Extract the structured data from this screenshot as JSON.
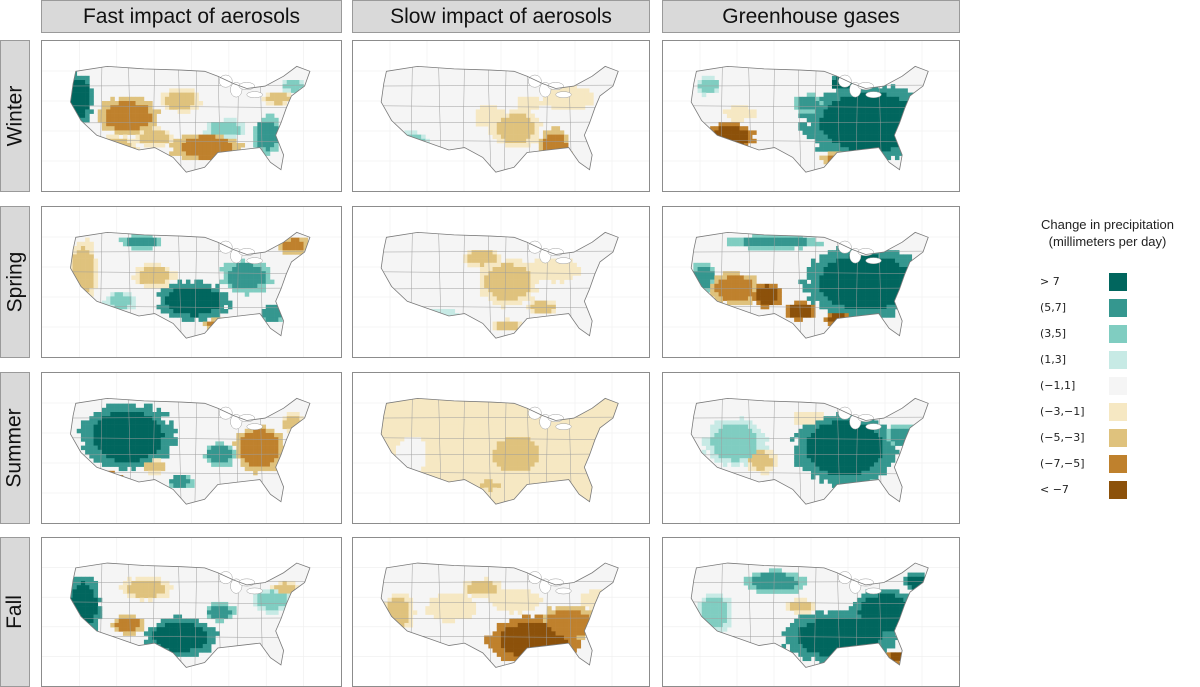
{
  "columns": [
    "Fast impact of aerosols",
    "Slow impact of aerosols",
    "Greenhouse gases"
  ],
  "rows": [
    "Winter",
    "Spring",
    "Summer",
    "Fall"
  ],
  "legend": {
    "title_line1": "Change in precipitation",
    "title_line2": "(millimeters per day)",
    "items": [
      {
        "label": "> 7",
        "color": "#01665e"
      },
      {
        "label": "(5,7]",
        "color": "#35978f"
      },
      {
        "label": "(3,5]",
        "color": "#80cdc1"
      },
      {
        "label": "(1,3]",
        "color": "#c7eae5"
      },
      {
        "label": "(−1,1]",
        "color": "#f5f5f5"
      },
      {
        "label": "(−3,−1]",
        "color": "#f6e8c3"
      },
      {
        "label": "(−5,−3]",
        "color": "#dfc27d"
      },
      {
        "label": "(−7,−5]",
        "color": "#bf812d"
      },
      {
        "label": "< −7",
        "color": "#8c510a"
      }
    ]
  },
  "panels": [
    [
      {
        "base": 4,
        "blobs": [
          [
            0.06,
            0.3,
            0.06,
            0.22,
            0
          ],
          [
            0.25,
            0.45,
            0.12,
            0.16,
            7
          ],
          [
            0.2,
            0.72,
            0.1,
            0.12,
            6
          ],
          [
            0.45,
            0.32,
            0.08,
            0.1,
            6
          ],
          [
            0.55,
            0.7,
            0.14,
            0.12,
            7
          ],
          [
            0.78,
            0.6,
            0.06,
            0.16,
            1
          ],
          [
            0.62,
            0.55,
            0.08,
            0.08,
            2
          ],
          [
            0.35,
            0.62,
            0.08,
            0.08,
            6
          ],
          [
            0.82,
            0.3,
            0.06,
            0.06,
            6
          ],
          [
            0.88,
            0.2,
            0.05,
            0.06,
            2
          ]
        ]
      },
      {
        "base": 4,
        "blobs": [
          [
            0.55,
            0.55,
            0.1,
            0.16,
            6
          ],
          [
            0.45,
            0.45,
            0.06,
            0.1,
            5
          ],
          [
            0.7,
            0.7,
            0.06,
            0.16,
            7
          ],
          [
            0.75,
            0.3,
            0.1,
            0.1,
            5
          ],
          [
            0.15,
            0.65,
            0.06,
            0.08,
            2
          ],
          [
            0.6,
            0.35,
            0.05,
            0.06,
            5
          ]
        ]
      },
      {
        "base": 4,
        "blobs": [
          [
            0.72,
            0.5,
            0.26,
            0.32,
            0
          ],
          [
            0.48,
            0.35,
            0.06,
            0.08,
            1
          ],
          [
            0.62,
            0.18,
            0.06,
            0.08,
            0
          ],
          [
            0.18,
            0.62,
            0.1,
            0.12,
            8
          ],
          [
            0.22,
            0.42,
            0.06,
            0.06,
            5
          ],
          [
            0.6,
            0.8,
            0.07,
            0.06,
            7
          ],
          [
            0.1,
            0.2,
            0.05,
            0.08,
            2
          ]
        ]
      }
    ],
    [
      {
        "base": 4,
        "blobs": [
          [
            0.08,
            0.35,
            0.06,
            0.25,
            6
          ],
          [
            0.5,
            0.6,
            0.14,
            0.16,
            0
          ],
          [
            0.7,
            0.4,
            0.1,
            0.14,
            1
          ],
          [
            0.88,
            0.15,
            0.06,
            0.07,
            7
          ],
          [
            0.35,
            0.4,
            0.08,
            0.1,
            6
          ],
          [
            0.3,
            0.12,
            0.08,
            0.06,
            1
          ],
          [
            0.22,
            0.6,
            0.06,
            0.08,
            2
          ],
          [
            0.6,
            0.8,
            0.06,
            0.06,
            7
          ],
          [
            0.8,
            0.7,
            0.05,
            0.08,
            1
          ]
        ]
      },
      {
        "base": 4,
        "blobs": [
          [
            0.52,
            0.45,
            0.12,
            0.2,
            6
          ],
          [
            0.42,
            0.25,
            0.08,
            0.08,
            6
          ],
          [
            0.7,
            0.35,
            0.1,
            0.1,
            5
          ],
          [
            0.65,
            0.65,
            0.06,
            0.06,
            6
          ],
          [
            0.25,
            0.72,
            0.08,
            0.06,
            3
          ],
          [
            0.52,
            0.8,
            0.06,
            0.05,
            6
          ]
        ]
      },
      {
        "base": 4,
        "blobs": [
          [
            0.7,
            0.45,
            0.24,
            0.3,
            0
          ],
          [
            0.35,
            0.12,
            0.18,
            0.06,
            1
          ],
          [
            0.2,
            0.5,
            0.1,
            0.14,
            7
          ],
          [
            0.32,
            0.55,
            0.06,
            0.1,
            8
          ],
          [
            0.45,
            0.68,
            0.06,
            0.08,
            8
          ],
          [
            0.6,
            0.75,
            0.06,
            0.05,
            8
          ],
          [
            0.88,
            0.75,
            0.04,
            0.06,
            5
          ],
          [
            0.08,
            0.4,
            0.05,
            0.12,
            1
          ]
        ]
      }
    ],
    [
      {
        "base": 4,
        "blobs": [
          [
            0.25,
            0.35,
            0.18,
            0.28,
            0
          ],
          [
            0.75,
            0.45,
            0.1,
            0.2,
            7
          ],
          [
            0.6,
            0.5,
            0.06,
            0.1,
            1
          ],
          [
            0.45,
            0.72,
            0.05,
            0.06,
            1
          ],
          [
            0.18,
            0.72,
            0.06,
            0.08,
            8
          ],
          [
            0.88,
            0.25,
            0.05,
            0.08,
            6
          ],
          [
            0.35,
            0.6,
            0.05,
            0.06,
            6
          ]
        ]
      },
      {
        "base": 5,
        "blobs": [
          [
            0.55,
            0.5,
            0.12,
            0.2,
            6
          ],
          [
            0.35,
            0.3,
            0.14,
            0.1,
            5
          ],
          [
            0.75,
            0.45,
            0.1,
            0.12,
            5
          ],
          [
            0.15,
            0.5,
            0.08,
            0.2,
            4
          ],
          [
            0.45,
            0.75,
            0.05,
            0.05,
            6
          ]
        ]
      },
      {
        "base": 4,
        "blobs": [
          [
            0.62,
            0.45,
            0.2,
            0.3,
            0
          ],
          [
            0.2,
            0.4,
            0.12,
            0.2,
            2
          ],
          [
            0.3,
            0.55,
            0.06,
            0.1,
            6
          ],
          [
            0.85,
            0.35,
            0.08,
            0.1,
            1
          ],
          [
            0.7,
            0.75,
            0.05,
            0.06,
            1
          ],
          [
            0.48,
            0.2,
            0.06,
            0.06,
            5
          ]
        ]
      }
    ],
    [
      {
        "base": 4,
        "blobs": [
          [
            0.08,
            0.4,
            0.07,
            0.26,
            0
          ],
          [
            0.45,
            0.65,
            0.14,
            0.16,
            0
          ],
          [
            0.32,
            0.25,
            0.1,
            0.1,
            6
          ],
          [
            0.25,
            0.55,
            0.06,
            0.08,
            7
          ],
          [
            0.8,
            0.35,
            0.08,
            0.1,
            2
          ],
          [
            0.85,
            0.25,
            0.05,
            0.06,
            6
          ],
          [
            0.6,
            0.45,
            0.06,
            0.08,
            1
          ]
        ]
      },
      {
        "base": 4,
        "blobs": [
          [
            0.62,
            0.68,
            0.18,
            0.2,
            8
          ],
          [
            0.75,
            0.55,
            0.12,
            0.16,
            7
          ],
          [
            0.42,
            0.25,
            0.08,
            0.08,
            6
          ],
          [
            0.55,
            0.35,
            0.1,
            0.1,
            5
          ],
          [
            0.1,
            0.45,
            0.06,
            0.16,
            6
          ],
          [
            0.3,
            0.4,
            0.1,
            0.12,
            5
          ],
          [
            0.85,
            0.35,
            0.06,
            0.08,
            5
          ]
        ]
      },
      {
        "base": 4,
        "blobs": [
          [
            0.6,
            0.65,
            0.22,
            0.22,
            0
          ],
          [
            0.78,
            0.45,
            0.14,
            0.2,
            0
          ],
          [
            0.35,
            0.2,
            0.12,
            0.1,
            1
          ],
          [
            0.12,
            0.45,
            0.07,
            0.18,
            2
          ],
          [
            0.45,
            0.4,
            0.06,
            0.06,
            6
          ],
          [
            0.9,
            0.2,
            0.05,
            0.08,
            0
          ],
          [
            0.82,
            0.82,
            0.04,
            0.05,
            8
          ]
        ]
      }
    ]
  ]
}
